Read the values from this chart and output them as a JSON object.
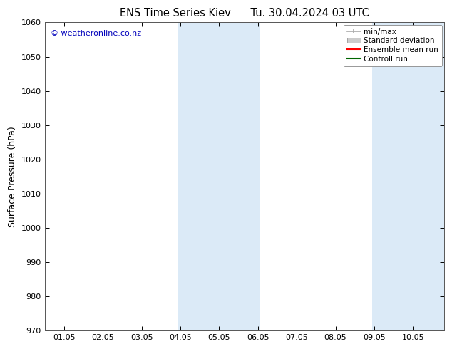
{
  "title_left": "ENS Time Series Kiev",
  "title_right": "Tu. 30.04.2024 03 UTC",
  "ylabel": "Surface Pressure (hPa)",
  "ylim": [
    970,
    1060
  ],
  "yticks": [
    970,
    980,
    990,
    1000,
    1010,
    1020,
    1030,
    1040,
    1050,
    1060
  ],
  "xtick_labels": [
    "01.05",
    "02.05",
    "03.05",
    "04.05",
    "05.05",
    "06.05",
    "07.05",
    "08.05",
    "09.05",
    "10.05"
  ],
  "xtick_positions": [
    1,
    2,
    3,
    4,
    5,
    6,
    7,
    8,
    9,
    10
  ],
  "xlim": [
    0.5,
    10.8
  ],
  "shaded_bands": [
    {
      "xstart": 3.95,
      "xend": 6.05
    },
    {
      "xstart": 8.95,
      "xend": 10.8
    }
  ],
  "shade_color": "#dbeaf7",
  "background_color": "#ffffff",
  "plot_bg_color": "#ffffff",
  "copyright_text": "© weatheronline.co.nz",
  "copyright_color": "#0000bb",
  "legend_entries": [
    {
      "label": "min/max",
      "color": "#aaaaaa",
      "type": "hline"
    },
    {
      "label": "Standard deviation",
      "color": "#cccccc",
      "type": "box"
    },
    {
      "label": "Ensemble mean run",
      "color": "#ff0000",
      "type": "line"
    },
    {
      "label": "Controll run",
      "color": "#006600",
      "type": "line"
    }
  ],
  "title_fontsize": 10.5,
  "ylabel_fontsize": 9,
  "tick_fontsize": 8,
  "legend_fontsize": 7.5,
  "copyright_fontsize": 8
}
